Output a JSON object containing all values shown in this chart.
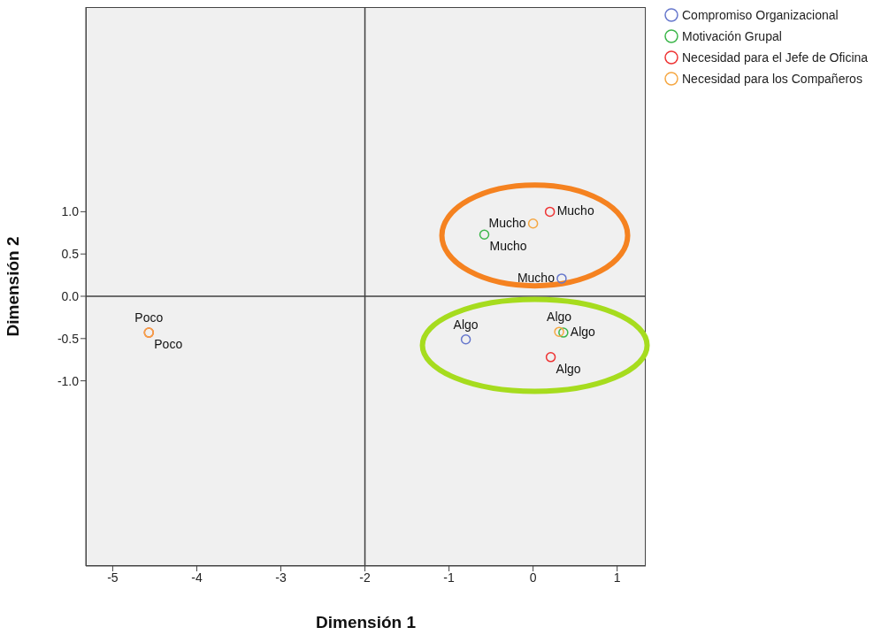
{
  "chart_data": {
    "type": "scatter",
    "xlabel": "Dimensión 1",
    "ylabel": "Dimensión 2",
    "xlim": [
      -5.32,
      1.34
    ],
    "ylim": [
      -3.19,
      3.42
    ],
    "xticks": [
      -5,
      -4,
      -3,
      -2,
      -1,
      0,
      1
    ],
    "yticks": [
      {
        "value": -1,
        "label": "-1.0"
      },
      {
        "value": -0.5,
        "label": "-0.5"
      },
      {
        "value": 0,
        "label": "0.0"
      },
      {
        "value": 0.5,
        "label": "0.5"
      },
      {
        "value": 1,
        "label": "1.0"
      }
    ],
    "legend": "top right",
    "marker": "circle",
    "ref_lines": [
      {
        "axis": "x",
        "value": -2,
        "color": "#404040"
      },
      {
        "axis": "y",
        "value": 0,
        "color": "#404040"
      }
    ],
    "series": [
      {
        "name": "Compromiso Organizacional",
        "color": "#6677cc",
        "x": [
          0.34,
          -0.8
        ],
        "values": [
          0.21,
          -0.51
        ],
        "value_labels": [
          "Mucho",
          "Algo"
        ]
      },
      {
        "name": "Motivación Grupal",
        "color": "#3cb64a",
        "x": [
          -0.58,
          0.36
        ],
        "values": [
          0.73,
          -0.43
        ],
        "value_labels": [
          "Mucho",
          "Algo"
        ]
      },
      {
        "name": "Necesidad para el Jefe de Oficina",
        "color": "#ee3333",
        "x": [
          0.2,
          0.21,
          -4.57
        ],
        "values": [
          1.0,
          -0.72,
          -0.43
        ],
        "value_labels": [
          "Mucho",
          "Algo",
          "Poco"
        ]
      },
      {
        "name": "Necesidad para los Compañeros",
        "color": "#f5a742",
        "x": [
          0.0,
          0.31,
          -4.57
        ],
        "values": [
          0.86,
          -0.42,
          -0.43
        ],
        "value_labels": [
          "Mucho",
          "Algo",
          "Poco"
        ]
      }
    ]
  }
}
